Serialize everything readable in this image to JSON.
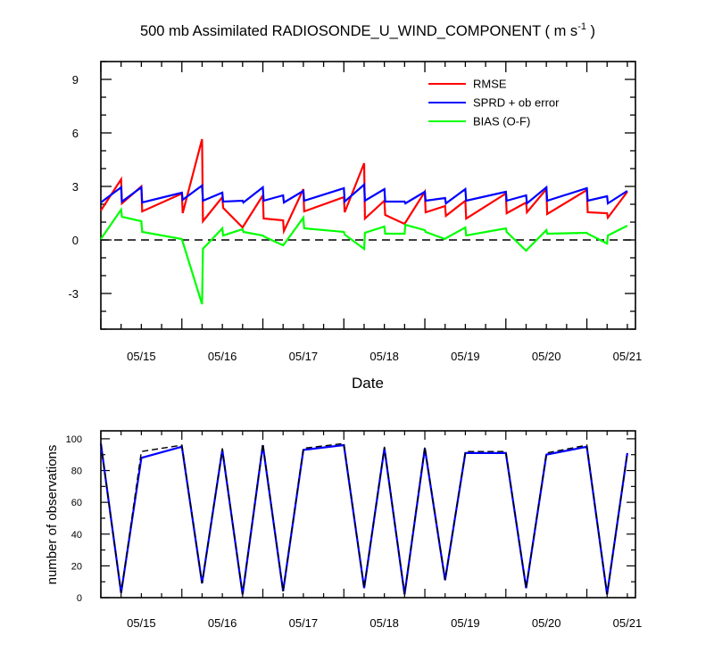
{
  "chart_data": [
    {
      "type": "line",
      "title": "500 mb Assimilated RADIOSONDE_U_WIND_COMPONENT",
      "title_units": "( m s",
      "title_units_sup": "-1",
      "title_units_close": " )",
      "xlabel": "Date",
      "ylabel": "",
      "xlim": [
        0,
        6.6
      ],
      "ylim": [
        -5,
        10
      ],
      "x_tick_labels": [
        "05/15",
        "05/16",
        "05/17",
        "05/18",
        "05/19",
        "05/20",
        "05/21"
      ],
      "y_tick_labels": [
        "9",
        "6",
        "3",
        "0",
        "-3"
      ],
      "y_tick_values": [
        9,
        6,
        3,
        0,
        -3
      ],
      "zero_line": true,
      "legend_position": "top-right",
      "series": [
        {
          "name": "RMSE",
          "color": "#ff0000",
          "points": [
            [
              0.0,
              1.65
            ],
            [
              0.25,
              3.4
            ],
            [
              0.26,
              2.05
            ],
            [
              0.5,
              3.0
            ],
            [
              0.51,
              1.6
            ],
            [
              1.0,
              2.6
            ],
            [
              1.01,
              1.5
            ],
            [
              1.25,
              5.65
            ],
            [
              1.26,
              1.05
            ],
            [
              1.5,
              2.4
            ],
            [
              1.51,
              1.8
            ],
            [
              1.75,
              0.7
            ],
            [
              2.0,
              2.5
            ],
            [
              2.01,
              1.2
            ],
            [
              2.25,
              1.1
            ],
            [
              2.26,
              0.5
            ],
            [
              2.5,
              2.85
            ],
            [
              2.51,
              1.6
            ],
            [
              3.0,
              2.4
            ],
            [
              3.01,
              1.55
            ],
            [
              3.25,
              4.3
            ],
            [
              3.26,
              1.2
            ],
            [
              3.5,
              2.2
            ],
            [
              3.51,
              1.4
            ],
            [
              3.75,
              0.9
            ],
            [
              4.0,
              2.7
            ],
            [
              4.01,
              1.55
            ],
            [
              4.25,
              1.9
            ],
            [
              4.26,
              1.35
            ],
            [
              4.5,
              2.2
            ],
            [
              4.51,
              1.2
            ],
            [
              5.0,
              2.6
            ],
            [
              5.01,
              1.5
            ],
            [
              5.25,
              2.1
            ],
            [
              5.26,
              1.55
            ],
            [
              5.5,
              2.85
            ],
            [
              5.51,
              1.45
            ],
            [
              6.0,
              2.8
            ],
            [
              6.01,
              1.55
            ],
            [
              6.25,
              1.5
            ],
            [
              6.26,
              1.25
            ],
            [
              6.5,
              2.7
            ]
          ]
        },
        {
          "name": "SPRD + ob error",
          "color": "#0000ff",
          "points": [
            [
              0.0,
              2.1
            ],
            [
              0.25,
              2.95
            ],
            [
              0.26,
              2.15
            ],
            [
              0.5,
              2.95
            ],
            [
              0.51,
              2.1
            ],
            [
              1.0,
              2.65
            ],
            [
              1.01,
              2.25
            ],
            [
              1.25,
              3.05
            ],
            [
              1.26,
              2.2
            ],
            [
              1.5,
              2.65
            ],
            [
              1.51,
              2.15
            ],
            [
              1.75,
              2.2
            ],
            [
              1.76,
              2.1
            ],
            [
              2.0,
              2.95
            ],
            [
              2.01,
              2.2
            ],
            [
              2.25,
              2.5
            ],
            [
              2.26,
              2.1
            ],
            [
              2.5,
              2.75
            ],
            [
              2.51,
              2.2
            ],
            [
              3.0,
              2.9
            ],
            [
              3.01,
              2.15
            ],
            [
              3.25,
              3.1
            ],
            [
              3.26,
              2.2
            ],
            [
              3.5,
              2.85
            ],
            [
              3.51,
              2.15
            ],
            [
              3.75,
              2.15
            ],
            [
              3.76,
              2.05
            ],
            [
              4.0,
              2.7
            ],
            [
              4.01,
              2.2
            ],
            [
              4.25,
              2.35
            ],
            [
              4.26,
              2.05
            ],
            [
              4.5,
              2.85
            ],
            [
              4.51,
              2.2
            ],
            [
              5.0,
              2.7
            ],
            [
              5.01,
              2.2
            ],
            [
              5.25,
              2.5
            ],
            [
              5.26,
              2.05
            ],
            [
              5.5,
              2.95
            ],
            [
              5.51,
              2.2
            ],
            [
              6.0,
              2.9
            ],
            [
              6.01,
              2.2
            ],
            [
              6.25,
              2.45
            ],
            [
              6.26,
              2.05
            ],
            [
              6.5,
              2.75
            ]
          ]
        },
        {
          "name": "BIAS (O-F)",
          "color": "#00ff00",
          "points": [
            [
              0.0,
              0.05
            ],
            [
              0.25,
              1.7
            ],
            [
              0.26,
              1.3
            ],
            [
              0.5,
              1.05
            ],
            [
              0.51,
              0.45
            ],
            [
              1.0,
              0.05
            ],
            [
              1.01,
              -0.1
            ],
            [
              1.25,
              -3.6
            ],
            [
              1.26,
              -0.5
            ],
            [
              1.5,
              0.65
            ],
            [
              1.51,
              0.25
            ],
            [
              1.75,
              0.6
            ],
            [
              1.76,
              0.45
            ],
            [
              2.0,
              0.25
            ],
            [
              2.01,
              0.2
            ],
            [
              2.25,
              -0.3
            ],
            [
              2.26,
              -0.25
            ],
            [
              2.5,
              1.25
            ],
            [
              2.51,
              0.65
            ],
            [
              3.0,
              0.45
            ],
            [
              3.01,
              0.3
            ],
            [
              3.25,
              -0.5
            ],
            [
              3.26,
              0.4
            ],
            [
              3.5,
              0.75
            ],
            [
              3.51,
              0.35
            ],
            [
              3.75,
              0.35
            ],
            [
              3.76,
              0.85
            ],
            [
              4.0,
              0.55
            ],
            [
              4.01,
              0.45
            ],
            [
              4.25,
              0.05
            ],
            [
              4.26,
              0.1
            ],
            [
              4.5,
              0.7
            ],
            [
              4.51,
              0.25
            ],
            [
              5.0,
              0.65
            ],
            [
              5.01,
              0.45
            ],
            [
              5.25,
              -0.6
            ],
            [
              5.26,
              -0.55
            ],
            [
              5.5,
              0.55
            ],
            [
              5.51,
              0.35
            ],
            [
              6.0,
              0.4
            ],
            [
              6.01,
              0.35
            ],
            [
              6.25,
              -0.2
            ],
            [
              6.26,
              0.25
            ],
            [
              6.5,
              0.8
            ]
          ]
        }
      ]
    },
    {
      "type": "line",
      "xlabel": "",
      "ylabel": "number of observations",
      "xlim": [
        0,
        6.6
      ],
      "ylim": [
        0,
        105
      ],
      "x_tick_labels": [
        "05/15",
        "05/16",
        "05/17",
        "05/18",
        "05/19",
        "05/20",
        "05/21"
      ],
      "y_tick_labels": [
        "0",
        "20",
        "40",
        "60",
        "80",
        "100"
      ],
      "y_tick_values": [
        0,
        20,
        40,
        60,
        80,
        100
      ],
      "series": [
        {
          "color": "#0000ff",
          "dash": "solid",
          "points": [
            [
              0.0,
              97
            ],
            [
              0.25,
              3
            ],
            [
              0.5,
              88
            ],
            [
              1.0,
              95
            ],
            [
              1.25,
              9
            ],
            [
              1.5,
              93
            ],
            [
              1.75,
              2
            ],
            [
              2.0,
              96
            ],
            [
              2.25,
              4
            ],
            [
              2.5,
              93
            ],
            [
              3.0,
              96
            ],
            [
              3.25,
              6
            ],
            [
              3.5,
              94
            ],
            [
              3.75,
              2
            ],
            [
              4.0,
              94
            ],
            [
              4.25,
              11
            ],
            [
              4.5,
              91
            ],
            [
              5.0,
              91
            ],
            [
              5.25,
              6
            ],
            [
              5.5,
              90
            ],
            [
              6.0,
              95
            ],
            [
              6.25,
              2
            ],
            [
              6.5,
              91
            ]
          ]
        },
        {
          "color": "#000000",
          "dash": "dashed",
          "points": [
            [
              0.0,
              97
            ],
            [
              0.25,
              3
            ],
            [
              0.5,
              92
            ],
            [
              1.0,
              96
            ],
            [
              1.25,
              9
            ],
            [
              1.5,
              94
            ],
            [
              1.75,
              2
            ],
            [
              2.0,
              97
            ],
            [
              2.25,
              4
            ],
            [
              2.5,
              94
            ],
            [
              3.0,
              97
            ],
            [
              3.25,
              6
            ],
            [
              3.5,
              95
            ],
            [
              3.75,
              2
            ],
            [
              4.0,
              95
            ],
            [
              4.25,
              11
            ],
            [
              4.5,
              92
            ],
            [
              5.0,
              92
            ],
            [
              5.25,
              6
            ],
            [
              5.5,
              91
            ],
            [
              6.0,
              96
            ],
            [
              6.25,
              2
            ],
            [
              6.5,
              91
            ]
          ]
        }
      ]
    }
  ]
}
